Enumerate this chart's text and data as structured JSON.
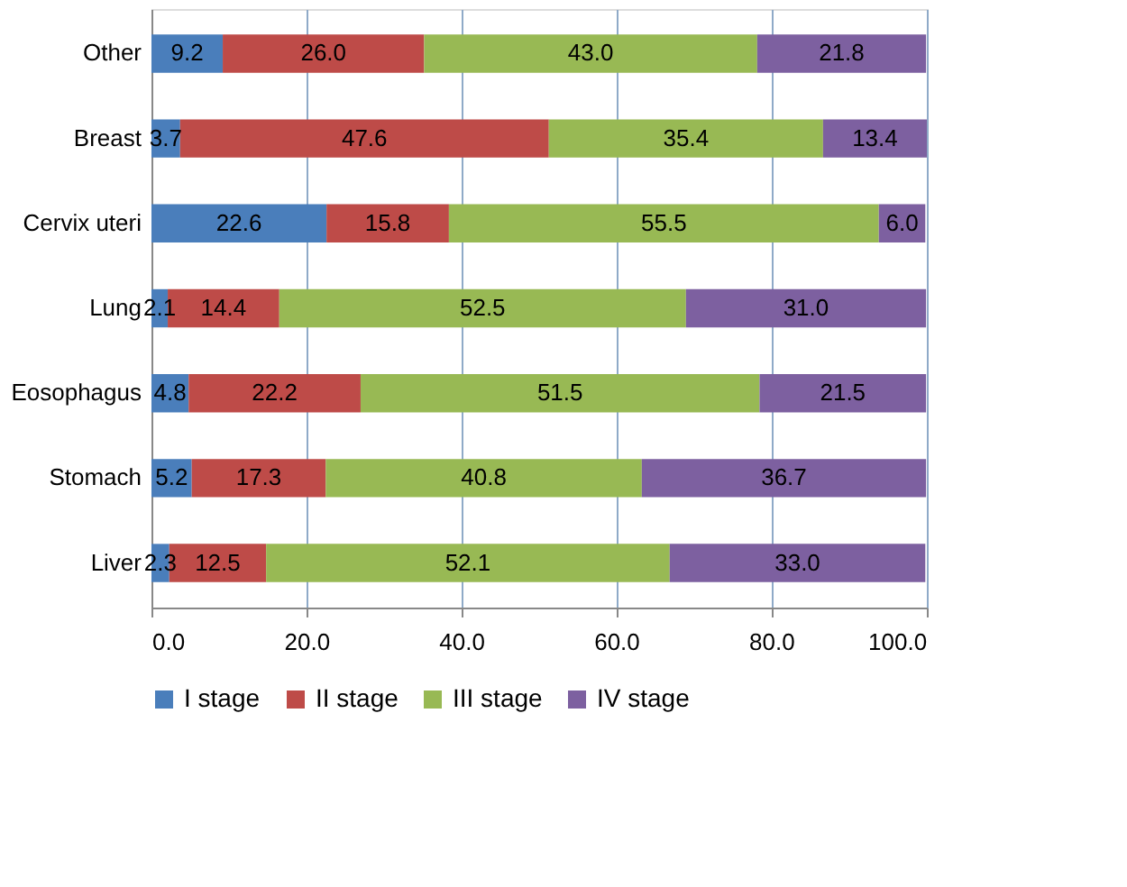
{
  "chart_data": {
    "type": "bar",
    "orientation": "horizontal",
    "stacked": true,
    "categories": [
      "Other",
      "Breast",
      "Cervix uteri",
      "Lung",
      "Eosophagus",
      "Stomach",
      "Liver"
    ],
    "series": [
      {
        "name": "I stage",
        "color": "#4a7ebb",
        "values": [
          9.2,
          3.7,
          22.6,
          2.1,
          4.8,
          5.2,
          2.3
        ],
        "value_labels": [
          "9.2",
          "3.7",
          "22.6",
          "2.1",
          "4.8",
          "5.2",
          "2.3"
        ]
      },
      {
        "name": "II stage",
        "color": "#be4b48",
        "values": [
          26.0,
          47.6,
          15.8,
          14.4,
          22.2,
          17.3,
          12.5
        ],
        "value_labels": [
          "26.0",
          "47.6",
          "15.8",
          "14.4",
          "22.2",
          "17.3",
          "12.5"
        ]
      },
      {
        "name": "III stage",
        "color": "#98b954",
        "values": [
          43.0,
          35.4,
          55.5,
          52.5,
          51.5,
          40.8,
          52.1
        ],
        "value_labels": [
          "43.0",
          "35.4",
          "55.5",
          "52.5",
          "51.5",
          "40.8",
          "52.1"
        ]
      },
      {
        "name": "IV stage",
        "color": "#7d60a0",
        "values": [
          21.8,
          13.4,
          6.0,
          31.0,
          21.5,
          36.7,
          33.0
        ],
        "value_labels": [
          "21.8",
          "13.4",
          "6.0",
          "31.0",
          "21.5",
          "36.7",
          "33.0"
        ]
      }
    ],
    "xlim": [
      0,
      100.1
    ],
    "xticks": [
      {
        "value": 0,
        "label": "0.0"
      },
      {
        "value": 20,
        "label": "20.0"
      },
      {
        "value": 40,
        "label": "40.0"
      },
      {
        "value": 60,
        "label": "60.0"
      },
      {
        "value": 80,
        "label": "80.0"
      },
      {
        "value": 100,
        "label": "100.0"
      }
    ],
    "grid": "x",
    "legend": "bottom"
  }
}
